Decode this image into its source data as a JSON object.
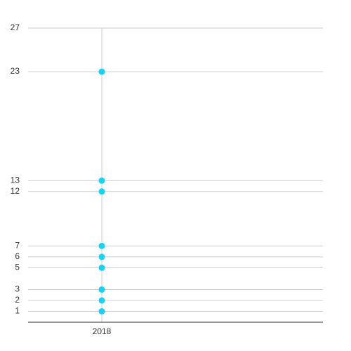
{
  "chart_data": {
    "type": "scatter",
    "x": [
      "2018",
      "2018",
      "2018",
      "2018",
      "2018",
      "2018",
      "2018",
      "2018",
      "2018"
    ],
    "series": [
      {
        "color": "#1ad1f5",
        "values": [
          1,
          2,
          3,
          5,
          6,
          7,
          12,
          13,
          23
        ]
      }
    ],
    "ylim": [
      0,
      27
    ],
    "yticks": [
      1,
      2,
      3,
      5,
      6,
      7,
      12,
      13,
      23,
      27
    ],
    "grid": true
  }
}
